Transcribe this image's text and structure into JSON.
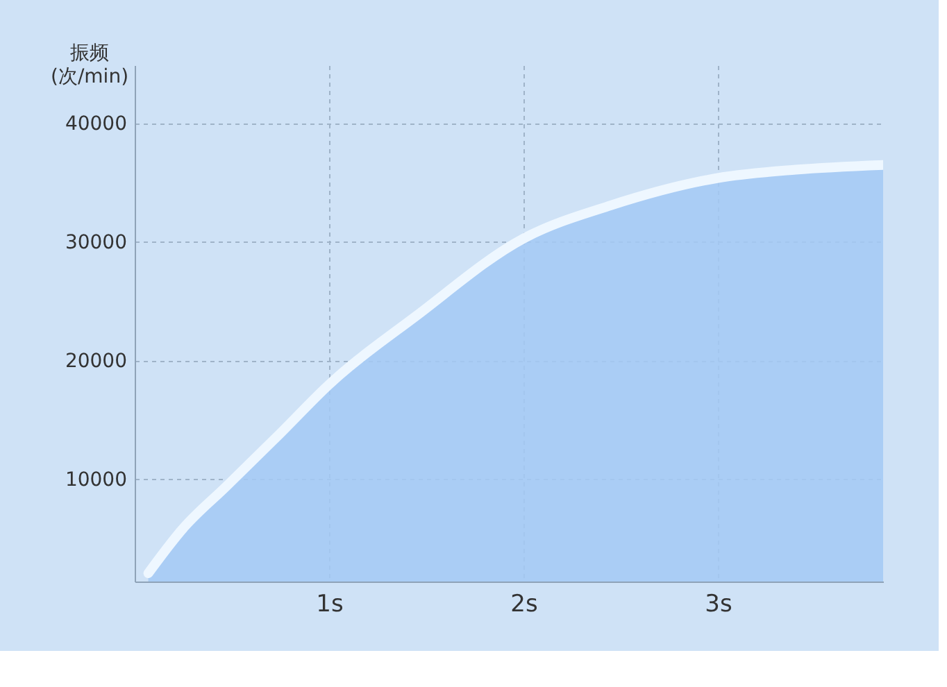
{
  "chart_data": {
    "type": "area",
    "ylabel": "振频\n(次/min)",
    "x": [
      0.07,
      0.25,
      0.47,
      0.75,
      1,
      1.45,
      2,
      2.45,
      3,
      3.4,
      3.85
    ],
    "series": [
      {
        "color": "#a3c9f5",
        "values": [
          2100,
          5900,
          9400,
          13900,
          18000,
          23800,
          30300,
          33100,
          35400,
          36100,
          36500
        ]
      }
    ],
    "xlim": [
      0,
      3.85
    ],
    "xticks": [
      {
        "value": 1,
        "label": "1s"
      },
      {
        "value": 2,
        "label": "2s"
      },
      {
        "value": 3,
        "label": "3s"
      }
    ],
    "ylim": [
      1400,
      44900
    ],
    "yticks": [
      10000,
      20000,
      30000,
      40000
    ],
    "grid": true
  }
}
